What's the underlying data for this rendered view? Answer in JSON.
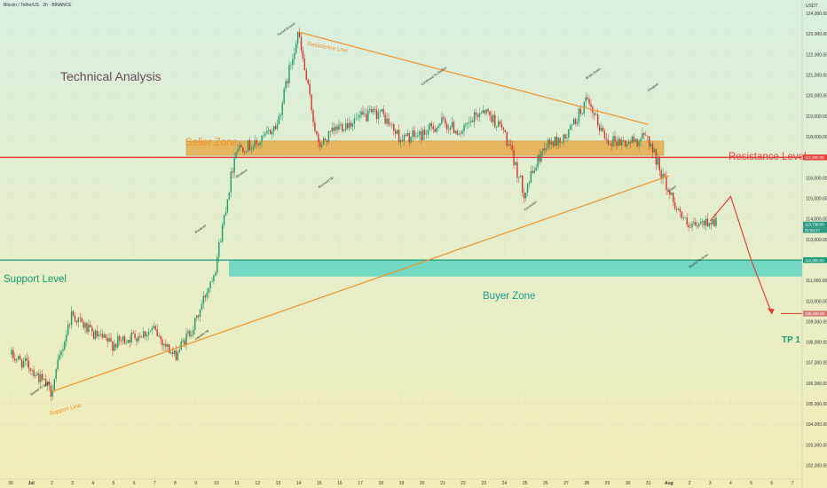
{
  "header": {
    "symbol": "Bitcoin / TetherUS · 2h · BINANCE",
    "currency": "USDT"
  },
  "colors": {
    "bg_top": "#d9efe0",
    "bg_bottom": "#f2edb6",
    "up": "#1a9b6c",
    "down": "#d0352c",
    "orange": "#f0902a",
    "seller_zone": "#e8a33a",
    "buyer_zone": "#4cd1c0",
    "resistance": "#e2413a",
    "support": "#1f9a7a",
    "tp_line": "#d0352c"
  },
  "chart_data": {
    "type": "candlestick",
    "title": "Technical Analysis",
    "y_ticks": [
      102000,
      103000,
      104000,
      105000,
      106000,
      107000,
      108000,
      109000,
      110000,
      111000,
      112000,
      113000,
      114000,
      115000,
      116000,
      117000,
      118000,
      119000,
      120000,
      121000,
      122000,
      123000,
      124000
    ],
    "y_tick_labels": [
      "102,000.00",
      "103,000.00",
      "104,000.00",
      "105,000.00",
      "106,000.00",
      "107,000.00",
      "108,000.00",
      "109,000.00",
      "110,000.00",
      "111,000.00",
      "112,000.00",
      "113,000.00",
      "114,000.00",
      "115,000.00",
      "116,000.00",
      "117,000.00",
      "118,000.00",
      "119,000.00",
      "120,000.00",
      "121,000.00",
      "122,000.00",
      "123,000.00",
      "124,000.00"
    ],
    "x_labels": [
      "30",
      "Jul",
      "2",
      "3",
      "4",
      "5",
      "6",
      "7",
      "8",
      "9",
      "10",
      "11",
      "12",
      "13",
      "14",
      "15",
      "16",
      "17",
      "18",
      "19",
      "20",
      "21",
      "22",
      "23",
      "24",
      "25",
      "26",
      "27",
      "28",
      "29",
      "30",
      "31",
      "Aug",
      "2",
      "3",
      "4",
      "5",
      "6",
      "7"
    ],
    "x_range": [
      "2025-06-30",
      "2025-08-07"
    ],
    "y_range": [
      101600,
      124400
    ],
    "price_path_daily": [
      [
        "2025-06-30",
        107400
      ],
      [
        "2025-07-01",
        106800
      ],
      [
        "2025-07-02",
        105600
      ],
      [
        "2025-07-03",
        109400
      ],
      [
        "2025-07-04",
        108400
      ],
      [
        "2025-07-05",
        107900
      ],
      [
        "2025-07-06",
        108300
      ],
      [
        "2025-07-07",
        108600
      ],
      [
        "2025-07-08",
        107300
      ],
      [
        "2025-07-09",
        108900
      ],
      [
        "2025-07-10",
        111700
      ],
      [
        "2025-07-11",
        117500
      ],
      [
        "2025-07-12",
        117600
      ],
      [
        "2025-07-13",
        118600
      ],
      [
        "2025-07-14",
        123100
      ],
      [
        "2025-07-15",
        117500
      ],
      [
        "2025-07-16",
        118500
      ],
      [
        "2025-07-17",
        118900
      ],
      [
        "2025-07-18",
        119200
      ],
      [
        "2025-07-19",
        117900
      ],
      [
        "2025-07-20",
        118100
      ],
      [
        "2025-07-21",
        118700
      ],
      [
        "2025-07-22",
        118200
      ],
      [
        "2025-07-23",
        119400
      ],
      [
        "2025-07-24",
        118300
      ],
      [
        "2025-07-25",
        115300
      ],
      [
        "2025-07-26",
        117600
      ],
      [
        "2025-07-27",
        117900
      ],
      [
        "2025-07-28",
        119700
      ],
      [
        "2025-07-29",
        117900
      ],
      [
        "2025-07-30",
        117700
      ],
      [
        "2025-07-31",
        118000
      ],
      [
        "2025-08-01",
        115400
      ],
      [
        "2025-08-02",
        113500
      ],
      [
        "2025-08-03",
        113900
      ]
    ],
    "seller_zone": [
      117100,
      117800
    ],
    "buyer_zone": [
      111200,
      112000
    ],
    "resistance_level": 117000,
    "support_level": 112000,
    "tp1_level": 109400,
    "resistance_line": [
      [
        "2025-07-14",
        123100
      ],
      [
        "2025-07-31",
        118600
      ]
    ],
    "support_line": [
      [
        "2025-07-02",
        105600
      ],
      [
        "2025-08-01",
        116100
      ]
    ],
    "projection": [
      [
        "2025-08-03",
        113900
      ],
      [
        "2025-08-04",
        115100
      ],
      [
        "2025-08-05",
        112000
      ],
      [
        "2025-08-06",
        109400
      ]
    ],
    "price_labels": {
      "resistance": "117,000.00",
      "support": "112,000.00",
      "tp1": "109,400.00",
      "current": "113,738.00",
      "countdown": "01:54:17"
    },
    "annotations": [
      {
        "text": "Turned Around",
        "date": "2025-07-13",
        "price": 122900
      },
      {
        "text": "Continued To Decline",
        "date": "2025-07-20",
        "price": 120500
      },
      {
        "text": "Broke Down",
        "date": "2025-07-28",
        "price": 120800
      },
      {
        "text": "Dropped",
        "date": "2025-07-31",
        "price": 120200
      },
      {
        "text": "Breakout",
        "date": "2025-07-11",
        "price": 116000
      },
      {
        "text": "Bounced Up",
        "date": "2025-07-15",
        "price": 115500
      },
      {
        "text": "Correction",
        "date": "2025-07-25",
        "price": 114400
      },
      {
        "text": "Exited",
        "date": "2025-08-01",
        "price": 115300
      },
      {
        "text": "Breakout",
        "date": "2025-07-09",
        "price": 113300
      },
      {
        "text": "Impulse Up",
        "date": "2025-07-09",
        "price": 108100
      },
      {
        "text": "Started To Grow",
        "date": "2025-07-01",
        "price": 105400
      },
      {
        "text": "Started To Grow",
        "date": "2025-08-02",
        "price": 111600
      }
    ],
    "labels": {
      "title": "Technical Analysis",
      "seller_zone": "Seller Zone",
      "buyer_zone": "Buyer Zone",
      "resistance_level": "Resistance Level",
      "support_level": "Support Level",
      "resistance_line": "Resistance Line",
      "support_line": "Support Line",
      "tp1": "TP 1"
    }
  }
}
